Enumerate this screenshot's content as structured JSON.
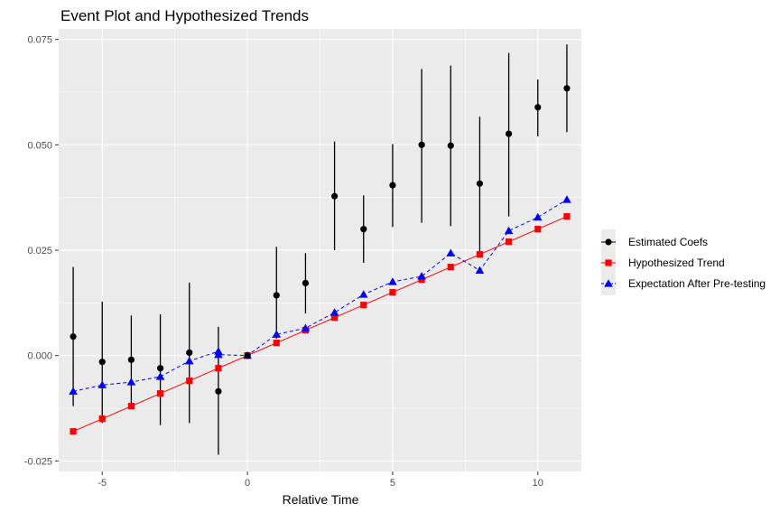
{
  "chart_data": {
    "type": "line",
    "title": "Event Plot and Hypothesized Trends",
    "xlabel": "Relative Time",
    "ylabel": "",
    "xlim": [
      -6.5,
      11.5
    ],
    "ylim": [
      -0.0275,
      0.0775
    ],
    "x_ticks": [
      -5,
      0,
      5,
      10
    ],
    "x_tick_labels": [
      "-5",
      "0",
      "5",
      "10"
    ],
    "y_ticks": [
      -0.025,
      0.0,
      0.025,
      0.05,
      0.075
    ],
    "y_tick_labels": [
      "-0.025",
      "0.000",
      "0.025",
      "0.050",
      "0.075"
    ],
    "grid": true,
    "legend_position": "right",
    "series": [
      {
        "name": "Estimated Coefs",
        "color": "#000000",
        "marker": "circle",
        "line": "none",
        "x": [
          -6,
          -5,
          -4,
          -3,
          -2,
          -1,
          0,
          1,
          2,
          3,
          4,
          5,
          6,
          7,
          8,
          9,
          10,
          11
        ],
        "values": [
          0.0045,
          -0.0015,
          -0.001,
          -0.003,
          0.0007,
          -0.0085,
          0.0,
          0.0143,
          0.0172,
          0.0378,
          0.03,
          0.0404,
          0.05,
          0.0498,
          0.0408,
          0.0526,
          0.0589,
          0.0634
        ],
        "lower": [
          -0.012,
          -0.016,
          -0.0125,
          -0.0165,
          -0.016,
          -0.0235,
          0.0,
          0.004,
          0.01,
          0.025,
          0.022,
          0.0305,
          0.0315,
          0.0307,
          0.024,
          0.033,
          0.052,
          0.053
        ],
        "upper": [
          0.021,
          0.0128,
          0.0095,
          0.0098,
          0.0173,
          0.0068,
          0.0,
          0.0258,
          0.0243,
          0.0508,
          0.038,
          0.0502,
          0.068,
          0.0688,
          0.0567,
          0.0718,
          0.0655,
          0.0738
        ]
      },
      {
        "name": "Hypothesized Trend",
        "color": "#ff0000",
        "marker": "square",
        "line": "solid",
        "x": [
          -6,
          -5,
          -4,
          -3,
          -2,
          -1,
          0,
          1,
          2,
          3,
          4,
          5,
          6,
          7,
          8,
          9,
          10,
          11
        ],
        "values": [
          -0.018,
          -0.015,
          -0.012,
          -0.009,
          -0.006,
          -0.003,
          0.0,
          0.003,
          0.006,
          0.009,
          0.012,
          0.015,
          0.018,
          0.021,
          0.024,
          0.027,
          0.03,
          0.033
        ]
      },
      {
        "name": "Expectation After Pre-testing",
        "color": "#0000ff",
        "marker": "triangle",
        "line": "dashed",
        "x": [
          -6,
          -5,
          -4,
          -3,
          -2,
          -1,
          -1,
          0,
          1,
          2,
          3,
          4,
          5,
          6,
          7,
          8,
          9,
          10,
          11
        ],
        "values": [
          -0.0085,
          -0.007,
          -0.0063,
          -0.005,
          -0.0013,
          0.001,
          0.0002,
          0.0,
          0.005,
          0.0065,
          0.0102,
          0.0145,
          0.0175,
          0.0188,
          0.0243,
          0.0202,
          0.0296,
          0.0328,
          0.037
        ]
      }
    ]
  }
}
